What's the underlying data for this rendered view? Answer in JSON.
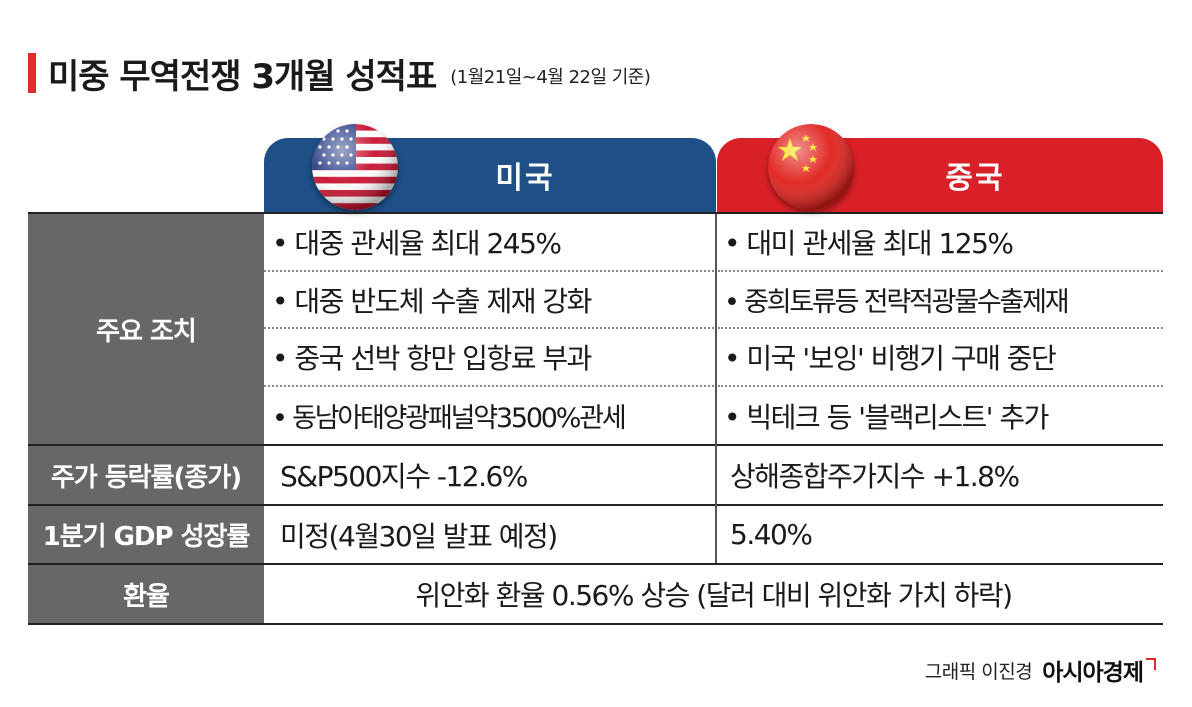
{
  "title": "미중 무역전쟁 3개월 성적표",
  "subtitle": "(1월21일~4월 22일 기준)",
  "header": {
    "us": "미국",
    "cn": "중국"
  },
  "rows": {
    "measures": {
      "label": "주요 조치",
      "us": [
        "• 대중 관세율 최대 245%",
        "• 대중 반도체 수출 제재 강화",
        "• 중국 선박 항만 입항료 부과",
        "• 동남아태양광패널약3500%관세"
      ],
      "cn": [
        "• 대미 관세율 최대 125%",
        "• 중희토류등 전략적광물수출제재",
        "• 미국 '보잉' 비행기 구매 중단",
        "• 빅테크 등 '블랙리스트' 추가"
      ]
    },
    "stock": {
      "label": "주가 등락률(종가)",
      "us": "S&P500지수 -12.6%",
      "cn": "상해종합주가지수 +1.8%"
    },
    "gdp": {
      "label": "1분기 GDP 성장률",
      "us": "미정(4월30일 발표 예정)",
      "cn": "5.40%"
    },
    "fx": {
      "label": "환율",
      "value": "위안화 환율 0.56% 상승 (달러 대비 위안화 가치 하락)"
    }
  },
  "credit": {
    "text": "그래픽 이진경",
    "logo": "아시아경제"
  },
  "colors": {
    "us": "#1e4f86",
    "cn": "#d92027",
    "accent": "#e12a2a",
    "label_bg": "#676767"
  }
}
